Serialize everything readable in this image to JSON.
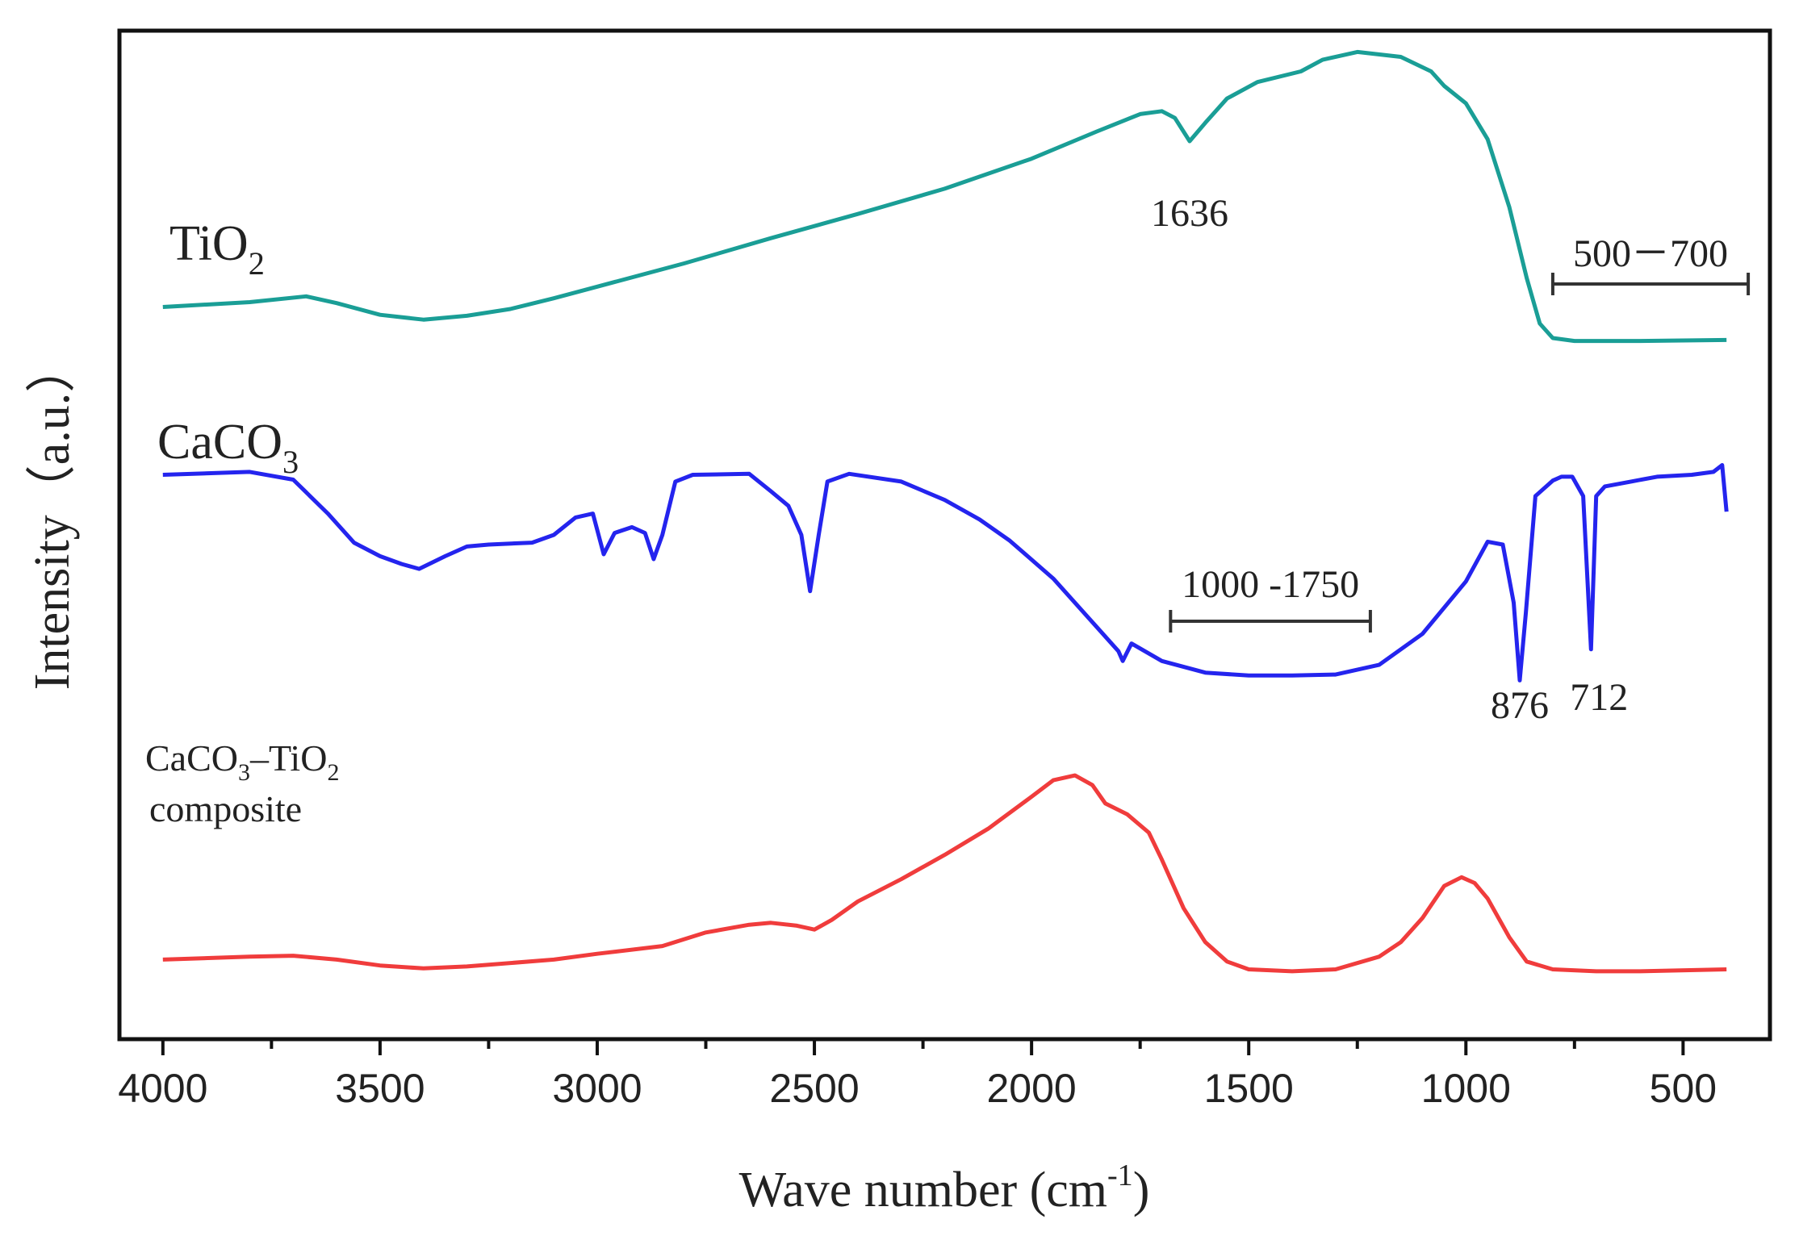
{
  "chart_data": {
    "type": "line",
    "title": "",
    "xlabel": "Wave number (cm",
    "xlabel_sup": "-1",
    "xlabel_end": ")",
    "ylabel": "Intensity（a.u.）",
    "xlim": [
      4100,
      300
    ],
    "x_reversed": true,
    "ylim": [
      -0.02,
      1.02
    ],
    "yticks_visible": false,
    "xticks": [
      4000,
      3500,
      3000,
      2500,
      2000,
      1500,
      1000,
      500
    ],
    "xtick_labels": [
      "4000",
      "3500",
      "3000",
      "2500",
      "2000",
      "1500",
      "1000",
      "500"
    ],
    "series": [
      {
        "name": "TiO2",
        "label_main": "TiO",
        "label_sub": "2",
        "color": "#1a9e96",
        "points": [
          [
            4000,
            0.735
          ],
          [
            3800,
            0.74
          ],
          [
            3670,
            0.746
          ],
          [
            3600,
            0.739
          ],
          [
            3500,
            0.727
          ],
          [
            3400,
            0.722
          ],
          [
            3300,
            0.726
          ],
          [
            3200,
            0.733
          ],
          [
            3100,
            0.744
          ],
          [
            3000,
            0.756
          ],
          [
            2800,
            0.78
          ],
          [
            2600,
            0.806
          ],
          [
            2400,
            0.831
          ],
          [
            2200,
            0.857
          ],
          [
            2000,
            0.888
          ],
          [
            1850,
            0.916
          ],
          [
            1750,
            0.934
          ],
          [
            1700,
            0.937
          ],
          [
            1670,
            0.93
          ],
          [
            1636,
            0.906
          ],
          [
            1600,
            0.925
          ],
          [
            1550,
            0.95
          ],
          [
            1480,
            0.967
          ],
          [
            1380,
            0.978
          ],
          [
            1330,
            0.99
          ],
          [
            1250,
            0.998
          ],
          [
            1150,
            0.993
          ],
          [
            1080,
            0.978
          ],
          [
            1050,
            0.963
          ],
          [
            1000,
            0.945
          ],
          [
            950,
            0.908
          ],
          [
            900,
            0.838
          ],
          [
            860,
            0.765
          ],
          [
            830,
            0.718
          ],
          [
            800,
            0.703
          ],
          [
            750,
            0.7
          ],
          [
            600,
            0.7
          ],
          [
            400,
            0.701
          ]
        ]
      },
      {
        "name": "CaCO3",
        "label_main": "CaCO",
        "label_sub": "3",
        "color": "#2424ee",
        "points": [
          [
            4000,
            0.562
          ],
          [
            3800,
            0.565
          ],
          [
            3700,
            0.557
          ],
          [
            3620,
            0.522
          ],
          [
            3560,
            0.492
          ],
          [
            3500,
            0.478
          ],
          [
            3450,
            0.47
          ],
          [
            3410,
            0.465
          ],
          [
            3350,
            0.478
          ],
          [
            3300,
            0.488
          ],
          [
            3250,
            0.49
          ],
          [
            3150,
            0.492
          ],
          [
            3100,
            0.5
          ],
          [
            3050,
            0.518
          ],
          [
            3010,
            0.522
          ],
          [
            2985,
            0.48
          ],
          [
            2960,
            0.502
          ],
          [
            2920,
            0.508
          ],
          [
            2890,
            0.502
          ],
          [
            2870,
            0.475
          ],
          [
            2850,
            0.5
          ],
          [
            2820,
            0.555
          ],
          [
            2780,
            0.562
          ],
          [
            2650,
            0.563
          ],
          [
            2600,
            0.545
          ],
          [
            2560,
            0.53
          ],
          [
            2530,
            0.5
          ],
          [
            2510,
            0.442
          ],
          [
            2490,
            0.5
          ],
          [
            2470,
            0.555
          ],
          [
            2420,
            0.563
          ],
          [
            2300,
            0.555
          ],
          [
            2200,
            0.536
          ],
          [
            2120,
            0.516
          ],
          [
            2050,
            0.494
          ],
          [
            1950,
            0.455
          ],
          [
            1850,
            0.405
          ],
          [
            1800,
            0.38
          ],
          [
            1790,
            0.37
          ],
          [
            1770,
            0.388
          ],
          [
            1700,
            0.37
          ],
          [
            1600,
            0.358
          ],
          [
            1500,
            0.355
          ],
          [
            1400,
            0.355
          ],
          [
            1300,
            0.356
          ],
          [
            1200,
            0.366
          ],
          [
            1100,
            0.398
          ],
          [
            1000,
            0.452
          ],
          [
            950,
            0.493
          ],
          [
            915,
            0.49
          ],
          [
            890,
            0.43
          ],
          [
            876,
            0.35
          ],
          [
            862,
            0.42
          ],
          [
            840,
            0.54
          ],
          [
            800,
            0.556
          ],
          [
            780,
            0.56
          ],
          [
            755,
            0.56
          ],
          [
            730,
            0.54
          ],
          [
            712,
            0.382
          ],
          [
            700,
            0.54
          ],
          [
            680,
            0.55
          ],
          [
            620,
            0.555
          ],
          [
            560,
            0.56
          ],
          [
            480,
            0.562
          ],
          [
            430,
            0.565
          ],
          [
            410,
            0.572
          ],
          [
            400,
            0.524
          ]
        ]
      },
      {
        "name": "CaCO3-TiO2 composite",
        "label_main": "CaCO",
        "label_sub": "3",
        "label_mid": "–TiO",
        "label_sub2": "2",
        "label_line2": "composite",
        "color": "#f03c3c",
        "points": [
          [
            4000,
            0.062
          ],
          [
            3800,
            0.065
          ],
          [
            3700,
            0.066
          ],
          [
            3600,
            0.062
          ],
          [
            3500,
            0.056
          ],
          [
            3400,
            0.053
          ],
          [
            3300,
            0.055
          ],
          [
            3100,
            0.062
          ],
          [
            3000,
            0.068
          ],
          [
            2850,
            0.076
          ],
          [
            2750,
            0.09
          ],
          [
            2650,
            0.098
          ],
          [
            2600,
            0.1
          ],
          [
            2540,
            0.097
          ],
          [
            2500,
            0.093
          ],
          [
            2460,
            0.103
          ],
          [
            2400,
            0.122
          ],
          [
            2300,
            0.145
          ],
          [
            2200,
            0.17
          ],
          [
            2100,
            0.197
          ],
          [
            2000,
            0.23
          ],
          [
            1950,
            0.247
          ],
          [
            1900,
            0.252
          ],
          [
            1860,
            0.242
          ],
          [
            1830,
            0.223
          ],
          [
            1780,
            0.212
          ],
          [
            1730,
            0.193
          ],
          [
            1700,
            0.165
          ],
          [
            1650,
            0.115
          ],
          [
            1600,
            0.08
          ],
          [
            1550,
            0.06
          ],
          [
            1500,
            0.052
          ],
          [
            1400,
            0.05
          ],
          [
            1300,
            0.052
          ],
          [
            1200,
            0.065
          ],
          [
            1150,
            0.08
          ],
          [
            1100,
            0.105
          ],
          [
            1050,
            0.138
          ],
          [
            1010,
            0.147
          ],
          [
            980,
            0.141
          ],
          [
            950,
            0.125
          ],
          [
            900,
            0.085
          ],
          [
            860,
            0.06
          ],
          [
            800,
            0.052
          ],
          [
            700,
            0.05
          ],
          [
            600,
            0.05
          ],
          [
            400,
            0.052
          ]
        ]
      }
    ],
    "annotations": [
      {
        "text": "1636",
        "x": 1636
      },
      {
        "text": "876",
        "x": 876
      },
      {
        "text": "712",
        "x": 712
      },
      {
        "text": "500－700",
        "range": [
          800,
          350
        ]
      },
      {
        "text": "1000 -1750",
        "range": [
          1680,
          1220
        ]
      }
    ]
  }
}
